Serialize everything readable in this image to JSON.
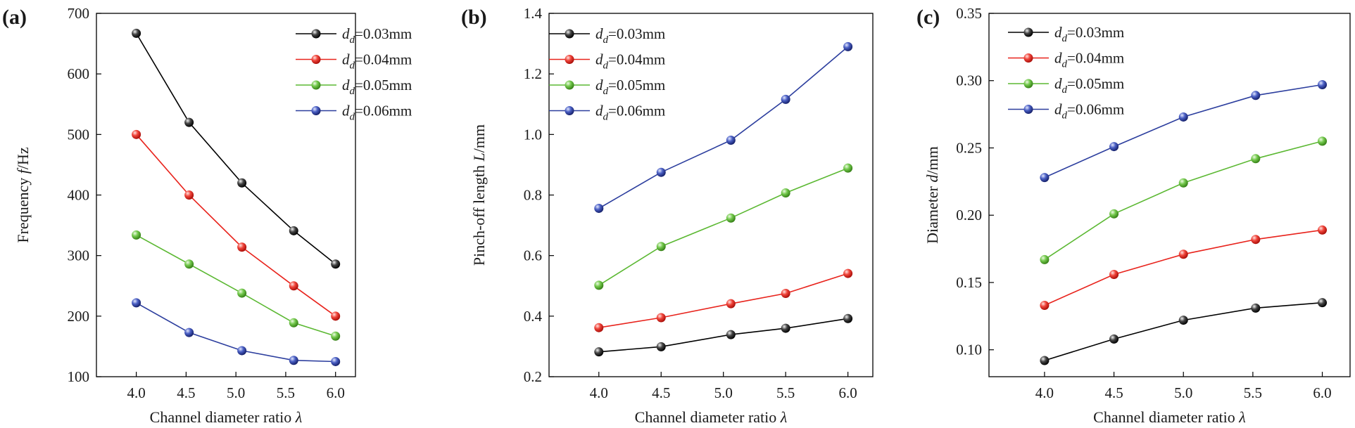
{
  "chart_data": [
    {
      "type": "line",
      "panel_label": "(a)",
      "xlabel": "Channel diameter ratio λ",
      "ylabel": "Frequency f/Hz",
      "xlim": [
        3.6,
        6.2
      ],
      "ylim": [
        100,
        700
      ],
      "xticks": [
        "4.0",
        "4.5",
        "5.0",
        "5.5",
        "6.0"
      ],
      "yticks": [
        "100",
        "200",
        "300",
        "400",
        "500",
        "600",
        "700"
      ],
      "legend_position": "top-right",
      "grid": false,
      "x": [
        4.0,
        4.53,
        5.06,
        5.58,
        6.0
      ],
      "series": [
        {
          "name": "d_d=0.03mm",
          "color": "#000000",
          "values": [
            667,
            520,
            420,
            341,
            286
          ]
        },
        {
          "name": "d_d=0.04mm",
          "color": "#e8231c",
          "values": [
            500,
            400,
            314,
            250,
            200
          ]
        },
        {
          "name": "d_d=0.05mm",
          "color": "#5bb832",
          "values": [
            334,
            286,
            238,
            189,
            167
          ]
        },
        {
          "name": "d_d=0.06mm",
          "color": "#2c3e9e",
          "values": [
            222,
            173,
            143,
            127,
            125
          ]
        }
      ]
    },
    {
      "type": "line",
      "panel_label": "(b)",
      "xlabel": "Channel diameter ratio λ",
      "ylabel": "Pinch-off length L/mm",
      "xlim": [
        3.6,
        6.2
      ],
      "ylim": [
        0.2,
        1.4
      ],
      "xticks": [
        "4.0",
        "4.5",
        "5.0",
        "5.5",
        "6.0"
      ],
      "yticks": [
        "0.2",
        "0.4",
        "0.6",
        "0.8",
        "1.0",
        "1.2",
        "1.4"
      ],
      "legend_position": "top-left",
      "grid": false,
      "x": [
        4.0,
        4.5,
        5.06,
        5.5,
        6.0
      ],
      "series": [
        {
          "name": "d_d=0.03mm",
          "color": "#000000",
          "values": [
            0.282,
            0.299,
            0.339,
            0.36,
            0.392
          ]
        },
        {
          "name": "d_d=0.04mm",
          "color": "#e8231c",
          "values": [
            0.362,
            0.395,
            0.441,
            0.475,
            0.541
          ]
        },
        {
          "name": "d_d=0.05mm",
          "color": "#5bb832",
          "values": [
            0.502,
            0.63,
            0.724,
            0.807,
            0.889
          ]
        },
        {
          "name": "d_d=0.06mm",
          "color": "#2c3e9e",
          "values": [
            0.756,
            0.875,
            0.981,
            1.116,
            1.29
          ]
        }
      ]
    },
    {
      "type": "line",
      "panel_label": "(c)",
      "xlabel": "Channel diameter ratio λ",
      "ylabel": "Diameter d/mm",
      "xlim": [
        3.6,
        6.2
      ],
      "ylim": [
        0.08,
        0.35
      ],
      "xticks": [
        "4.0",
        "4.5",
        "5.0",
        "5.5",
        "6.0"
      ],
      "yticks": [
        "0.10",
        "0.15",
        "0.20",
        "0.25",
        "0.30",
        "0.35"
      ],
      "legend_position": "top-left",
      "grid": false,
      "x": [
        4.0,
        4.5,
        5.0,
        5.52,
        6.0
      ],
      "series": [
        {
          "name": "d_d=0.03mm",
          "color": "#000000",
          "values": [
            0.092,
            0.108,
            0.122,
            0.131,
            0.135
          ]
        },
        {
          "name": "d_d=0.04mm",
          "color": "#e8231c",
          "values": [
            0.133,
            0.156,
            0.171,
            0.182,
            0.189
          ]
        },
        {
          "name": "d_d=0.05mm",
          "color": "#5bb832",
          "values": [
            0.167,
            0.201,
            0.224,
            0.242,
            0.255
          ]
        },
        {
          "name": "d_d=0.06mm",
          "color": "#2c3e9e",
          "values": [
            0.228,
            0.251,
            0.273,
            0.289,
            0.297
          ]
        }
      ]
    }
  ]
}
